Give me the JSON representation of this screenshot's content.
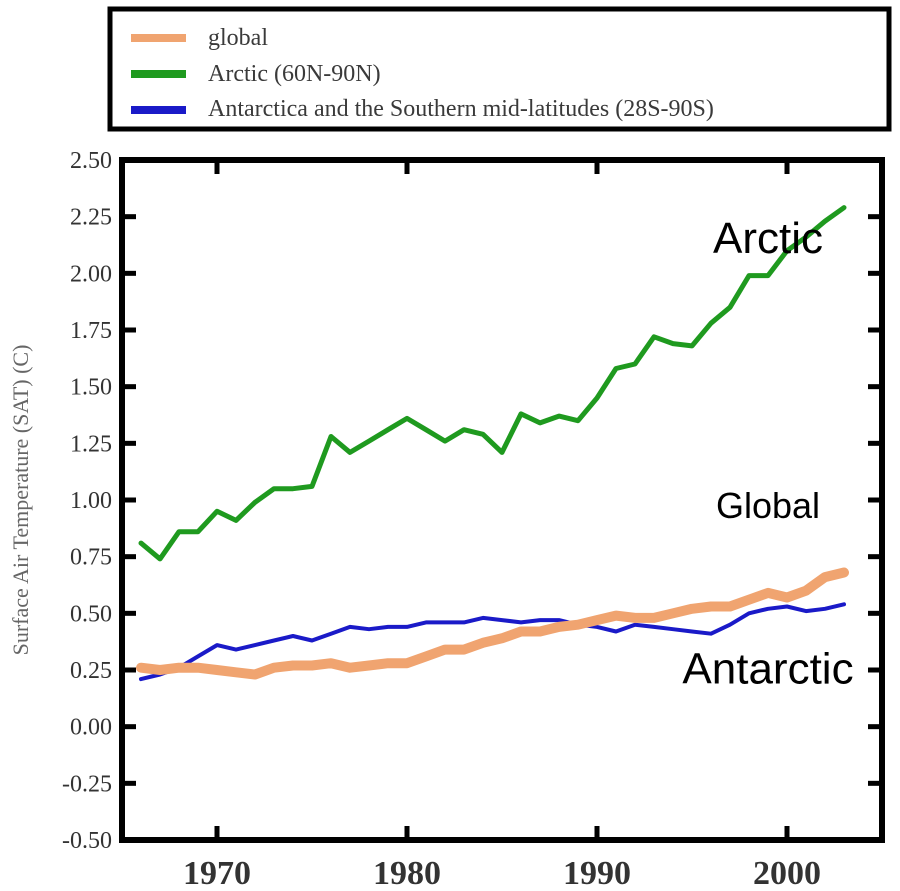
{
  "chart_data": {
    "type": "line",
    "title": "",
    "xlabel": "",
    "ylabel": "Surface Air Temperature (SAT) (C)",
    "xlim": [
      1965,
      2005
    ],
    "ylim": [
      -0.5,
      2.5
    ],
    "x_ticks": [
      "1970",
      "1980",
      "1990",
      "2000"
    ],
    "y_ticks": [
      "2.50",
      "2.25",
      "2.00",
      "1.75",
      "1.50",
      "1.25",
      "1.00",
      "0.75",
      "0.50",
      "0.25",
      "0.00",
      "-0.25",
      "-0.50"
    ],
    "grid": false,
    "legend_position": "top",
    "series": [
      {
        "name": "global",
        "color": "#f0a470",
        "x": [
          1966,
          1967,
          1968,
          1969,
          1970,
          1971,
          1972,
          1973,
          1974,
          1975,
          1976,
          1977,
          1978,
          1979,
          1980,
          1981,
          1982,
          1983,
          1984,
          1985,
          1986,
          1987,
          1988,
          1989,
          1990,
          1991,
          1992,
          1993,
          1994,
          1995,
          1996,
          1997,
          1998,
          1999,
          2000,
          2001,
          2002,
          2003
        ],
        "values": [
          0.26,
          0.25,
          0.26,
          0.26,
          0.25,
          0.24,
          0.23,
          0.26,
          0.27,
          0.27,
          0.28,
          0.26,
          0.27,
          0.28,
          0.28,
          0.31,
          0.34,
          0.34,
          0.37,
          0.39,
          0.42,
          0.42,
          0.44,
          0.45,
          0.47,
          0.49,
          0.48,
          0.48,
          0.5,
          0.52,
          0.53,
          0.53,
          0.56,
          0.59,
          0.57,
          0.6,
          0.66,
          0.68
        ]
      },
      {
        "name": "Arctic (60N-90N)",
        "color": "#1f9a1f",
        "x": [
          1966,
          1967,
          1968,
          1969,
          1970,
          1971,
          1972,
          1973,
          1974,
          1975,
          1976,
          1977,
          1978,
          1979,
          1980,
          1981,
          1982,
          1983,
          1984,
          1985,
          1986,
          1987,
          1988,
          1989,
          1990,
          1991,
          1992,
          1993,
          1994,
          1995,
          1996,
          1997,
          1998,
          1999,
          2000,
          2001,
          2002,
          2003
        ],
        "values": [
          0.81,
          0.74,
          0.86,
          0.86,
          0.95,
          0.91,
          0.99,
          1.05,
          1.05,
          1.06,
          1.28,
          1.21,
          1.26,
          1.31,
          1.36,
          1.31,
          1.26,
          1.31,
          1.29,
          1.21,
          1.38,
          1.34,
          1.37,
          1.35,
          1.45,
          1.58,
          1.6,
          1.72,
          1.69,
          1.68,
          1.78,
          1.85,
          1.99,
          1.99,
          2.1,
          2.16,
          2.23,
          2.29
        ]
      },
      {
        "name": "Antarctica and the Southern mid-latitudes (28S-90S)",
        "color": "#1a1ac8",
        "x": [
          1966,
          1967,
          1968,
          1969,
          1970,
          1971,
          1972,
          1973,
          1974,
          1975,
          1976,
          1977,
          1978,
          1979,
          1980,
          1981,
          1982,
          1983,
          1984,
          1985,
          1986,
          1987,
          1988,
          1989,
          1990,
          1991,
          1992,
          1993,
          1994,
          1995,
          1996,
          1997,
          1998,
          1999,
          2000,
          2001,
          2002,
          2003
        ],
        "values": [
          0.21,
          0.23,
          0.26,
          0.31,
          0.36,
          0.34,
          0.36,
          0.38,
          0.4,
          0.38,
          0.41,
          0.44,
          0.43,
          0.44,
          0.44,
          0.46,
          0.46,
          0.46,
          0.48,
          0.47,
          0.46,
          0.47,
          0.47,
          0.45,
          0.44,
          0.42,
          0.45,
          0.44,
          0.43,
          0.42,
          0.41,
          0.45,
          0.5,
          0.52,
          0.53,
          0.51,
          0.52,
          0.54
        ]
      }
    ],
    "annotations": [
      {
        "text": "Arctic",
        "x": 1999,
        "y": 2.09
      },
      {
        "text": "Global",
        "x": 1999,
        "y": 0.92
      },
      {
        "text": "Antarctic",
        "x": 1999,
        "y": 0.19
      }
    ]
  }
}
